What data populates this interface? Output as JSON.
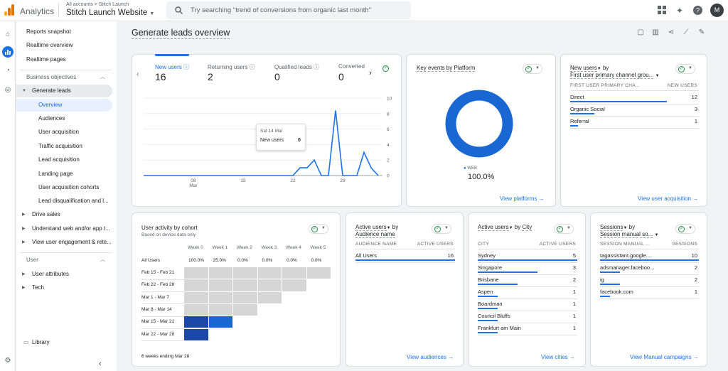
{
  "header": {
    "brand": "Analytics",
    "breadcrumb": "All accounts > Stitch Launch",
    "property": "Stitch Launch Website",
    "search_placeholder": "Try searching \"trend of conversions from organic last month\"",
    "avatar": "M",
    "icons": [
      "apps-icon",
      "sparkle-icon",
      "help-icon"
    ]
  },
  "rail": {
    "icons": [
      "home-icon",
      "reports-icon",
      "explore-icon",
      "advertising-icon",
      "settings-icon"
    ]
  },
  "sidebar": {
    "top_items": [
      "Reports snapshot",
      "Realtime overview",
      "Realtime pages"
    ],
    "section1": "Business objectives",
    "group": "Generate leads",
    "sub_items": [
      "Overview",
      "Audiences",
      "User acquisition",
      "Traffic acquisition",
      "Lead acquisition",
      "Landing page",
      "User acquisition cohorts",
      "Lead disqualification and l..."
    ],
    "more_groups": [
      "Drive sales",
      "Understand web and/or app t...",
      "View user engagement & rete..."
    ],
    "section2": "User",
    "user_items": [
      "User attributes",
      "Tech"
    ],
    "library": "Library"
  },
  "main": {
    "title": "Generate leads overview",
    "metrics": [
      {
        "label": "New users",
        "value": "16"
      },
      {
        "label": "Returning users",
        "value": "2"
      },
      {
        "label": "Qualified leads",
        "value": "0"
      },
      {
        "label": "Converted",
        "value": "0"
      }
    ],
    "tooltip": {
      "date": "Sat 14 Mar",
      "label": "New users",
      "value": "0"
    }
  },
  "chart_data": {
    "type": "line",
    "series": [
      {
        "name": "New users",
        "values": [
          0,
          0,
          0,
          0,
          0,
          0,
          0,
          0,
          0,
          0,
          0,
          0,
          0,
          0,
          0,
          0,
          0,
          0,
          0,
          0,
          0,
          0,
          1,
          1,
          2,
          0,
          0,
          8.4,
          0,
          0,
          0,
          3,
          1,
          0
        ]
      }
    ],
    "x_ticks": [
      "08\nMar",
      "15",
      "22",
      "29"
    ],
    "y_ticks": [
      "10",
      "8",
      "6",
      "4",
      "2",
      "0"
    ],
    "ylim": [
      0,
      10
    ]
  },
  "platform": {
    "title_a": "Key events by",
    "title_b": "Platform",
    "legend": "WEB",
    "percent": "100.0%",
    "link": "View platforms",
    "color": "#1967d2"
  },
  "new_users_channel": {
    "title": "New users",
    "by": "by",
    "dim": "First user primary channel grou...",
    "col1": "FIRST USER PRIMARY CHA...",
    "col2": "NEW USERS",
    "rows": [
      {
        "name": "Direct",
        "value": "12",
        "pct": 0.75
      },
      {
        "name": "Organic Social",
        "value": "3",
        "pct": 0.19
      },
      {
        "name": "Referral",
        "value": "1",
        "pct": 0.06
      }
    ],
    "link": "View user acquisition"
  },
  "cohort": {
    "title": "User activity by cohort",
    "subtitle": "Based on device data only",
    "weeks": [
      "Week 0",
      "Week 1",
      "Week 2",
      "Week 3",
      "Week 4",
      "Week 5"
    ],
    "all_label": "All Users",
    "all_values": [
      "100.0%",
      "25.0%",
      "0.0%",
      "0.0%",
      "0.0%",
      "0.0%"
    ],
    "rows": [
      "Feb 15 - Feb 21",
      "Feb 22 - Feb 28",
      "Mar 1 - Mar 7",
      "Mar 8 - Mar 14",
      "Mar 15 - Mar 21",
      "Mar 22 - Mar 28"
    ],
    "footer": "6 weeks ending Mar 28",
    "link": "View audiences"
  },
  "active_audience": {
    "title": "Active users",
    "by": "by",
    "dim": "Audience name",
    "col1": "AUDIENCE NAME",
    "col2": "ACTIVE USERS",
    "rows": [
      {
        "name": "All Users",
        "value": "16",
        "pct": 1.0
      }
    ],
    "link": "View audiences"
  },
  "active_city": {
    "title": "Active users",
    "by": "by",
    "dim": "City",
    "col1": "CITY",
    "col2": "ACTIVE USERS",
    "rows": [
      {
        "name": "Sydney",
        "value": "5",
        "pct": 1.0
      },
      {
        "name": "Singapore",
        "value": "3",
        "pct": 0.6
      },
      {
        "name": "Brisbane",
        "value": "2",
        "pct": 0.4
      },
      {
        "name": "Aspen",
        "value": "1",
        "pct": 0.2
      },
      {
        "name": "Boardman",
        "value": "1",
        "pct": 0.2
      },
      {
        "name": "Council Bluffs",
        "value": "1",
        "pct": 0.2
      },
      {
        "name": "Frankfurt am Main",
        "value": "1",
        "pct": 0.2
      }
    ],
    "link": "View cities"
  },
  "sessions_manual": {
    "title": "Sessions",
    "by": "by",
    "dim": "Session manual so...",
    "col1": "SESSION MANUAL ...",
    "col2": "SESSIONS",
    "rows": [
      {
        "name": "tagassistant.google....",
        "value": "10",
        "pct": 1.0
      },
      {
        "name": "adsmanager.faceboo...",
        "value": "2",
        "pct": 0.2
      },
      {
        "name": "ig",
        "value": "2",
        "pct": 0.2
      },
      {
        "name": "facebook.com",
        "value": "1",
        "pct": 0.1
      }
    ],
    "link": "View Manual campaigns"
  }
}
